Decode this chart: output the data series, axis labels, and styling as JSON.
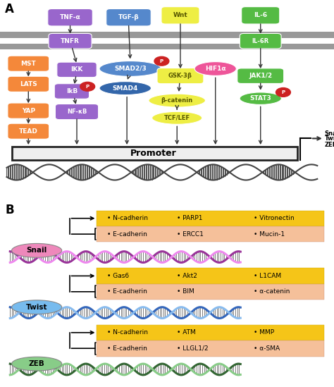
{
  "bg_color": "#ffffff",
  "snail_genes_up": [
    "N-cadherin",
    "PARP1",
    "Vitronectin"
  ],
  "snail_genes_dn": [
    "E-cadherin",
    "ERCC1",
    "Mucin-1"
  ],
  "twist_genes_up": [
    "Gas6",
    "Akt2",
    "L1CAM"
  ],
  "twist_genes_dn": [
    "E-cadherin",
    "BIM",
    "α-catenin"
  ],
  "zeb_genes_up": [
    "N-cadherin",
    "ATM",
    "MMP"
  ],
  "zeb_genes_dn": [
    "E-cadherin",
    "LLGL1/2",
    "α-SMA"
  ],
  "snail_color": "#ee88bb",
  "twist_color": "#77bbee",
  "zeb_color": "#88cc88",
  "dna_snail_color1": "#993399",
  "dna_snail_color2": "#ee88ee",
  "dna_twist_color1": "#3366bb",
  "dna_twist_color2": "#88bbee",
  "dna_zeb_color1": "#336633",
  "dna_zeb_color2": "#88cc88",
  "table_yellow": "#f5c518",
  "table_peach": "#f5c09a",
  "orange_node": "#f4883a",
  "purple_node": "#9966cc",
  "blue_node": "#5588cc",
  "yellow_node": "#eeee44",
  "green_node": "#55bb44",
  "pink_node": "#ee5599",
  "promoter_fill": "#eeeeee",
  "membrane_color": "#999999"
}
